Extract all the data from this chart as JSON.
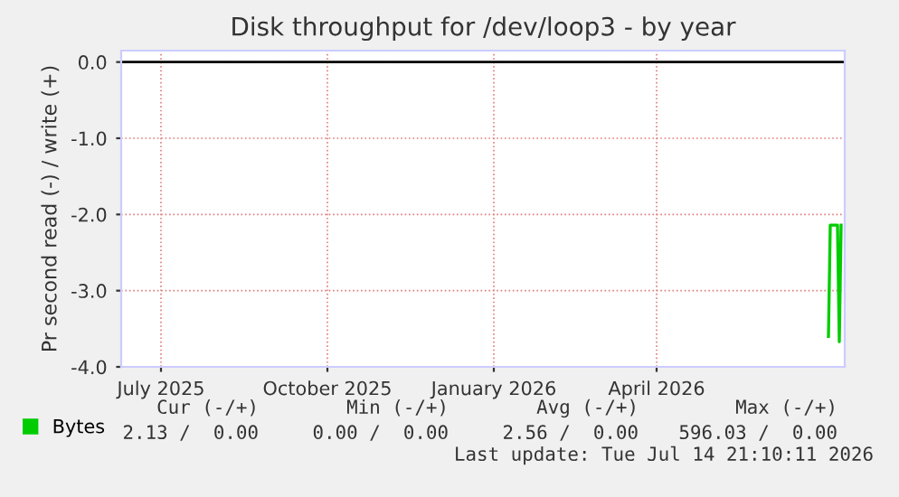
{
  "chart_data": {
    "type": "line",
    "title": "Disk throughput for /dev/loop3 - by year",
    "ylabel": "Pr second read (-) / write (+)",
    "x": [
      "2026-07-05",
      "2026-07-06",
      "2026-07-10",
      "2026-07-11",
      "2026-07-12"
    ],
    "series": [
      {
        "name": "Bytes",
        "color": "#00cc00",
        "values": [
          -3.6,
          -2.14,
          -2.14,
          -3.67,
          -2.14
        ]
      }
    ],
    "xlim": [
      "2025-06-09",
      "2026-07-14"
    ],
    "xticks": [
      {
        "value": "2025-07-01",
        "label": "July 2025"
      },
      {
        "value": "2025-10-01",
        "label": "October 2025"
      },
      {
        "value": "2026-01-01",
        "label": "January 2026"
      },
      {
        "value": "2026-04-01",
        "label": "April 2026"
      }
    ],
    "ylim": [
      -4,
      0.15
    ],
    "yticks": [
      {
        "value": 0,
        "label": "0.0"
      },
      {
        "value": -1,
        "label": "-1.0"
      },
      {
        "value": -2,
        "label": "-2.0"
      },
      {
        "value": -3,
        "label": "-3.0"
      },
      {
        "value": -4,
        "label": "-4.0"
      }
    ],
    "ref_lines": [
      {
        "axis": "y",
        "value": 0,
        "color": "#000000"
      }
    ],
    "grid": true,
    "legend": "bottom",
    "marker": "none",
    "line_style": "solid",
    "annotations": [
      "Cur (-/+)",
      "Min (-/+)",
      "Avg (-/+)",
      "Max (-/+)",
      "2.13 /  0.00",
      "0.00 /  0.00",
      "2.56 /  0.00",
      "596.03 /  0.00",
      "Last update: Tue Jul 14 21:10:11 2026"
    ]
  }
}
